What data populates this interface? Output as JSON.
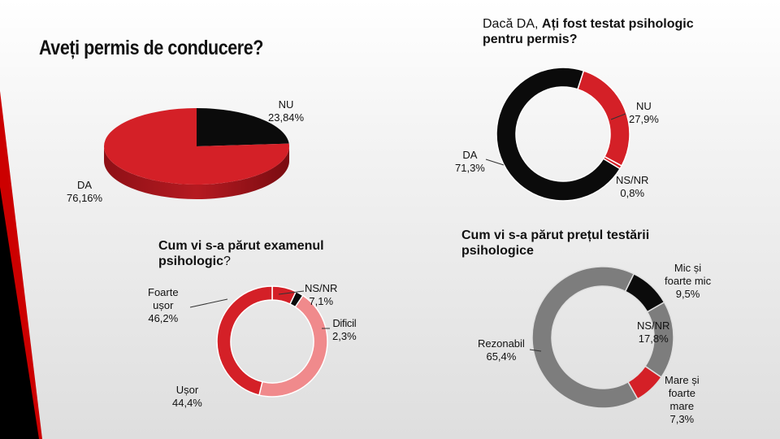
{
  "colors": {
    "red": "#d42027",
    "black": "#0b0b0b",
    "pink": "#f08a8c",
    "gray": "#7d7d7d",
    "deco_red": "#cc0000"
  },
  "chart_data": [
    {
      "type": "pie",
      "title": "Aveți permis de conducere?",
      "slices": [
        {
          "label": "NU",
          "value_text": "23,84%",
          "value": 23.84,
          "color": "black"
        },
        {
          "label": "DA",
          "value_text": "76,16%",
          "value": 76.16,
          "color": "red"
        }
      ]
    },
    {
      "type": "pie",
      "title_prefix": "Dacă DA, ",
      "title": "Ați fost testat psihologic pentru permis?",
      "slices": [
        {
          "label": "NU",
          "value_text": "27,9%",
          "value": 27.9,
          "color": "red"
        },
        {
          "label": "NS/NR",
          "value_text": "0,8%",
          "value": 0.8,
          "color": "red"
        },
        {
          "label": "DA",
          "value_text": "71,3%",
          "value": 71.3,
          "color": "black"
        }
      ]
    },
    {
      "type": "pie",
      "title": "Cum vi s-a părut examenul psihologic",
      "title_suffix": "?",
      "slices": [
        {
          "label": "NS/NR",
          "value_text": "7,1%",
          "value": 7.1,
          "color": "red"
        },
        {
          "label": "Dificil",
          "value_text": "2,3%",
          "value": 2.3,
          "color": "black"
        },
        {
          "label": "Ușor",
          "value_text": "44,4%",
          "value": 44.4,
          "color": "pink"
        },
        {
          "label": "Foarte ușor",
          "value_text": "46,2%",
          "value": 46.2,
          "color": "red"
        }
      ]
    },
    {
      "type": "pie",
      "title": "Cum vi s-a părut prețul testării psihologice",
      "slices": [
        {
          "label": "Mic și foarte mic",
          "value_text": "9,5%",
          "value": 9.5,
          "color": "black"
        },
        {
          "label": "NS/NR",
          "value_text": "17,8%",
          "value": 17.8,
          "color": "gray"
        },
        {
          "label": "Mare și foarte mare",
          "value_text": "7,3%",
          "value": 7.3,
          "color": "red"
        },
        {
          "label": "Rezonabil",
          "value_text": "65,4%",
          "value": 65.4,
          "color": "gray"
        }
      ]
    }
  ],
  "labels": {
    "c1": {
      "nu": [
        "NU",
        "23,84%"
      ],
      "da": [
        "DA",
        "76,16%"
      ]
    },
    "c2": {
      "nu": [
        "NU",
        "27,9%"
      ],
      "da": [
        "DA",
        "71,3%"
      ],
      "nsnr": [
        "NS/NR",
        "0,8%"
      ]
    },
    "c3": {
      "nsnr": [
        "NS/NR",
        "7,1%"
      ],
      "dificil": [
        "Dificil",
        "2,3%"
      ],
      "usor": [
        "Ușor",
        "44,4%"
      ],
      "foarte": [
        "Foarte",
        "ușor",
        "46,2%"
      ]
    },
    "c4": {
      "mic": [
        "Mic și",
        "foarte mic",
        "9,5%"
      ],
      "nsnr": [
        "NS/NR",
        "17,8%"
      ],
      "mare": [
        "Mare și",
        "foarte",
        "mare",
        "7,3%"
      ],
      "rez": [
        "Rezonabil",
        "65,4%"
      ]
    }
  }
}
